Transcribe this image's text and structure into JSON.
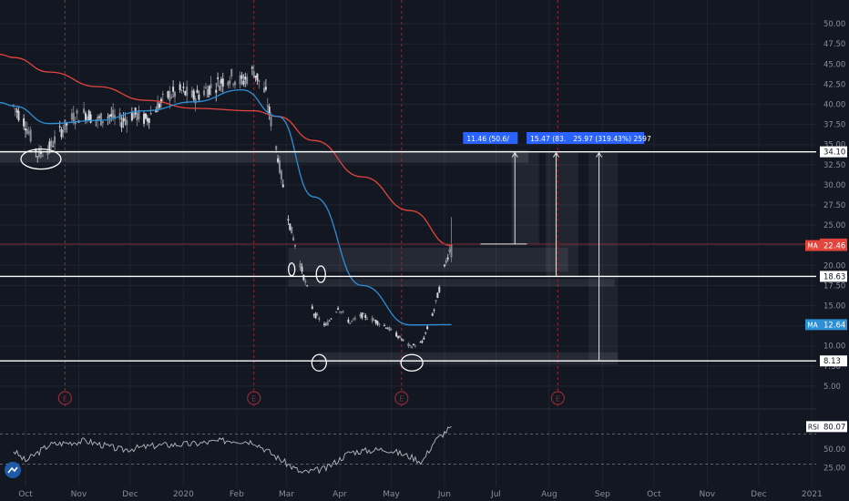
{
  "theme": {
    "background": "#131722",
    "grid": "#1f2431",
    "up_candle": "#8a8d96",
    "down_candle": "#d8d9dc",
    "ma_slow_color": "#e2453c",
    "ma_fast_color": "#2d8fd6",
    "rsi_color": "#b6b9bf",
    "axis_text": "#8a8e99",
    "level_line": "#ffffff",
    "event_color": "#8e2a33",
    "measure_label_bg": "#2962ff"
  },
  "chart_data": [
    {
      "type": "candlestick",
      "title": "",
      "x_ticks": [
        "Oct",
        "Nov",
        "Dec",
        "2020",
        "Feb",
        "Mar",
        "Apr",
        "May",
        "Jun",
        "Jul",
        "Aug",
        "Sep",
        "Oct",
        "Nov",
        "Dec",
        "2021"
      ],
      "y_ticks": [
        5.0,
        7.5,
        10.0,
        12.5,
        15.0,
        17.5,
        20.0,
        22.5,
        25.0,
        27.5,
        30.0,
        32.5,
        35.0,
        37.5,
        40.0,
        42.5,
        45.0,
        47.5,
        50.0
      ],
      "ylim": [
        2.5,
        52.5
      ],
      "grid": true,
      "price_labels": [
        {
          "label": "22.65",
          "value": 22.65,
          "style": "price"
        },
        {
          "label": "22.46",
          "value": 22.46,
          "style": "ma-slow",
          "tag": "MA"
        },
        {
          "label": "12.64",
          "value": 12.64,
          "style": "ma-fast",
          "tag": "MA"
        },
        {
          "label": "34.10",
          "value": 34.1,
          "style": "level"
        },
        {
          "label": "18.63",
          "value": 18.63,
          "style": "level"
        },
        {
          "label": "8.13",
          "value": 8.13,
          "style": "level"
        }
      ],
      "horizontal_levels": [
        34.1,
        18.63,
        8.13
      ],
      "current_price_line": 22.65,
      "measure_labels": [
        "11.46 (50.6/",
        "15.47 (83.",
        "25.97 (319.43%) 2597"
      ],
      "event_markers": [
        "E",
        "E",
        "E",
        "E"
      ],
      "price_series": [
        {
          "date": "2019-09-24",
          "close": 39.8
        },
        {
          "date": "2019-10-01",
          "close": 37.6
        },
        {
          "date": "2019-10-08",
          "close": 33.8
        },
        {
          "date": "2019-10-15",
          "close": 34.6
        },
        {
          "date": "2019-10-22",
          "close": 36.8
        },
        {
          "date": "2019-10-29",
          "close": 38.4
        },
        {
          "date": "2019-11-05",
          "close": 38.9
        },
        {
          "date": "2019-11-12",
          "close": 38.0
        },
        {
          "date": "2019-11-19",
          "close": 38.6
        },
        {
          "date": "2019-11-26",
          "close": 37.9
        },
        {
          "date": "2019-12-03",
          "close": 38.8
        },
        {
          "date": "2019-12-10",
          "close": 38.1
        },
        {
          "date": "2019-12-17",
          "close": 39.8
        },
        {
          "date": "2019-12-24",
          "close": 41.2
        },
        {
          "date": "2019-12-31",
          "close": 41.6
        },
        {
          "date": "2020-01-07",
          "close": 40.9
        },
        {
          "date": "2020-01-14",
          "close": 41.8
        },
        {
          "date": "2020-01-21",
          "close": 42.6
        },
        {
          "date": "2020-01-28",
          "close": 43.5
        },
        {
          "date": "2020-02-04",
          "close": 42.8
        },
        {
          "date": "2020-02-11",
          "close": 44.2
        },
        {
          "date": "2020-02-18",
          "close": 41.2
        },
        {
          "date": "2020-02-25",
          "close": 33.5
        },
        {
          "date": "2020-03-03",
          "close": 25.0
        },
        {
          "date": "2020-03-10",
          "close": 19.4
        },
        {
          "date": "2020-03-17",
          "close": 14.0
        },
        {
          "date": "2020-03-24",
          "close": 12.5
        },
        {
          "date": "2020-03-31",
          "close": 14.8
        },
        {
          "date": "2020-04-07",
          "close": 12.9
        },
        {
          "date": "2020-04-14",
          "close": 13.8
        },
        {
          "date": "2020-04-21",
          "close": 13.2
        },
        {
          "date": "2020-04-28",
          "close": 12.4
        },
        {
          "date": "2020-05-05",
          "close": 11.2
        },
        {
          "date": "2020-05-12",
          "close": 9.9
        },
        {
          "date": "2020-05-19",
          "close": 10.4
        },
        {
          "date": "2020-05-26",
          "close": 14.5
        },
        {
          "date": "2020-06-02",
          "close": 20.5
        },
        {
          "date": "2020-06-05",
          "close": 22.65
        }
      ],
      "ma_slow": [
        {
          "date": "2019-09-24",
          "value": 45.8
        },
        {
          "date": "2019-10-15",
          "value": 44.0
        },
        {
          "date": "2019-11-12",
          "value": 42.2
        },
        {
          "date": "2019-12-10",
          "value": 40.5
        },
        {
          "date": "2020-01-07",
          "value": 39.5
        },
        {
          "date": "2020-02-11",
          "value": 39.2
        },
        {
          "date": "2020-02-25",
          "value": 38.5
        },
        {
          "date": "2020-03-17",
          "value": 35.5
        },
        {
          "date": "2020-04-14",
          "value": 31.0
        },
        {
          "date": "2020-05-12",
          "value": 26.8
        },
        {
          "date": "2020-06-05",
          "value": 22.46
        }
      ],
      "ma_fast": [
        {
          "date": "2019-09-24",
          "value": 39.8
        },
        {
          "date": "2019-10-15",
          "value": 37.6
        },
        {
          "date": "2019-11-12",
          "value": 38.0
        },
        {
          "date": "2019-12-10",
          "value": 39.2
        },
        {
          "date": "2020-01-07",
          "value": 40.3
        },
        {
          "date": "2020-02-04",
          "value": 41.8
        },
        {
          "date": "2020-02-25",
          "value": 38.5
        },
        {
          "date": "2020-03-17",
          "value": 28.5
        },
        {
          "date": "2020-04-14",
          "value": 17.5
        },
        {
          "date": "2020-05-12",
          "value": 12.6
        },
        {
          "date": "2020-06-05",
          "value": 12.64
        }
      ]
    },
    {
      "type": "line",
      "title": "",
      "series_label": "RSI",
      "current_value": 80.07,
      "current_label": "80.07",
      "y_ticks": [
        25.0,
        50.0
      ],
      "ylim": [
        0,
        100
      ],
      "bands": [
        70,
        30
      ],
      "values": [
        {
          "date": "2019-09-24",
          "value": 48
        },
        {
          "date": "2019-10-01",
          "value": 34
        },
        {
          "date": "2019-10-15",
          "value": 56
        },
        {
          "date": "2019-11-05",
          "value": 61
        },
        {
          "date": "2019-11-26",
          "value": 49
        },
        {
          "date": "2019-12-17",
          "value": 55
        },
        {
          "date": "2020-01-07",
          "value": 57
        },
        {
          "date": "2020-01-28",
          "value": 62
        },
        {
          "date": "2020-02-11",
          "value": 60
        },
        {
          "date": "2020-02-25",
          "value": 38
        },
        {
          "date": "2020-03-10",
          "value": 18
        },
        {
          "date": "2020-03-24",
          "value": 24
        },
        {
          "date": "2020-04-07",
          "value": 46
        },
        {
          "date": "2020-04-28",
          "value": 50
        },
        {
          "date": "2020-05-12",
          "value": 40
        },
        {
          "date": "2020-05-19",
          "value": 33
        },
        {
          "date": "2020-05-26",
          "value": 60
        },
        {
          "date": "2020-06-05",
          "value": 80.07
        }
      ]
    }
  ],
  "logo_icon": "tradingview-logo-icon"
}
